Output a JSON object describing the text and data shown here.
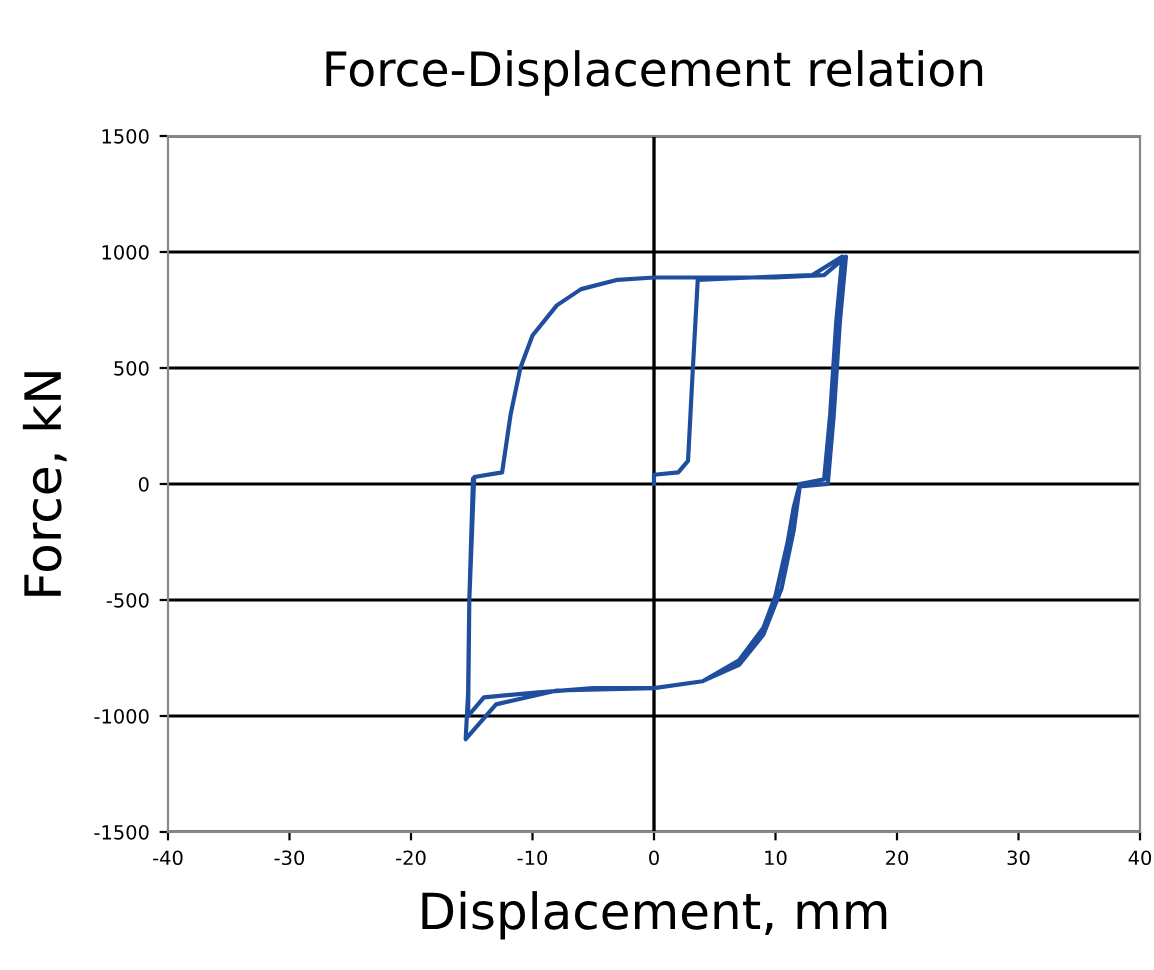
{
  "chart_data": {
    "type": "line",
    "title": "Force-Displacement relation",
    "xlabel": "Displacement, mm",
    "ylabel": "Force, kN",
    "xlim": [
      -40,
      40
    ],
    "xticks": [
      -40,
      -30,
      -20,
      -10,
      0,
      10,
      20,
      30,
      40
    ],
    "ylim": [
      -1500,
      1500
    ],
    "yticks": [
      -1500,
      -1000,
      -500,
      0,
      500,
      1000,
      1500
    ],
    "grid": "y",
    "marker": "none",
    "line_style": "solid",
    "ref_lines": [
      {
        "axis": "x",
        "value": 0,
        "color": "#000000"
      }
    ],
    "series": [
      {
        "color": "#1f4e9e",
        "x": [
          0,
          0,
          2,
          2.8,
          3.2,
          3.6,
          8,
          13,
          15.5,
          15,
          14.5,
          14,
          12,
          11.5,
          11,
          10,
          9,
          7,
          4,
          0,
          -5,
          -10,
          -14,
          -15.3,
          -15.2,
          -14.8,
          -12.5,
          -11.8,
          -11,
          -10,
          -8,
          -6,
          -3,
          0,
          5,
          10,
          14,
          15.8,
          15.3,
          14.8,
          14.3,
          12,
          11.5,
          10.5,
          9,
          7,
          4,
          0,
          -8,
          -13,
          -15.5,
          -15.3,
          -15.2,
          -14.9
        ],
        "values": [
          0,
          40,
          50,
          100,
          500,
          880,
          890,
          900,
          980,
          700,
          300,
          20,
          0,
          -100,
          -250,
          -480,
          -620,
          -760,
          -850,
          -880,
          -880,
          -900,
          -920,
          -1000,
          -500,
          30,
          50,
          300,
          500,
          640,
          770,
          840,
          880,
          890,
          890,
          890,
          900,
          980,
          700,
          300,
          0,
          -10,
          -200,
          -450,
          -650,
          -780,
          -850,
          -880,
          -890,
          -950,
          -1100,
          -900,
          -500,
          20
        ]
      }
    ]
  }
}
